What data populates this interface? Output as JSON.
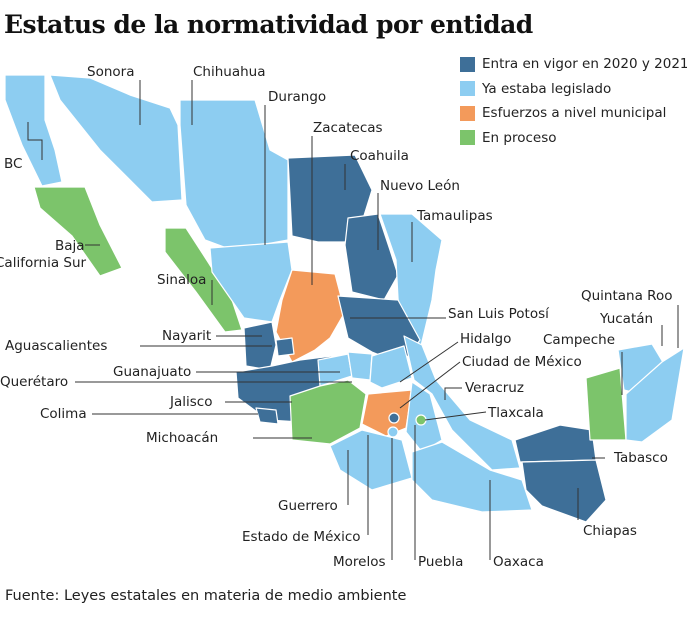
{
  "title": "Estatus de la normatividad  por entidad",
  "legend": [
    {
      "key": "vigor",
      "label": "Entra en vigor en 2020 y 2021",
      "color": "#3e6f98"
    },
    {
      "key": "legislado",
      "label": "Ya estaba legislado",
      "color": "#8dcdf1"
    },
    {
      "key": "municipal",
      "label": "Esfuerzos a nivel municipal",
      "color": "#f39a5b"
    },
    {
      "key": "proceso",
      "label": "En proceso",
      "color": "#7cc46b"
    }
  ],
  "states": {
    "bc": {
      "name": "BC",
      "status": "legislado"
    },
    "bcs": {
      "name": "Baja California Sur",
      "status": "proceso"
    },
    "sonora": {
      "name": "Sonora",
      "status": "legislado"
    },
    "chihuahua": {
      "name": "Chihuahua",
      "status": "legislado"
    },
    "sinaloa": {
      "name": "Sinaloa",
      "status": "proceso"
    },
    "durango": {
      "name": "Durango",
      "status": "legislado"
    },
    "coahuila": {
      "name": "Coahuila",
      "status": "vigor"
    },
    "nuevoleon": {
      "name": "Nuevo León",
      "status": "vigor"
    },
    "tamaulipas": {
      "name": "Tamaulipas",
      "status": "legislado"
    },
    "zacatecas": {
      "name": "Zacatecas",
      "status": "municipal"
    },
    "slp": {
      "name": "San Luis Potosí",
      "status": "vigor"
    },
    "nayarit": {
      "name": "Nayarit",
      "status": "vigor"
    },
    "aguascalientes": {
      "name": "Aguascalientes",
      "status": "vigor"
    },
    "jalisco": {
      "name": "Jalisco",
      "status": "vigor"
    },
    "colima": {
      "name": "Colima",
      "status": "vigor"
    },
    "guanajuato": {
      "name": "Guanajuato",
      "status": "legislado"
    },
    "queretaro": {
      "name": "Querétaro",
      "status": "legislado"
    },
    "hidalgo": {
      "name": "Hidalgo",
      "status": "legislado"
    },
    "michoacan": {
      "name": "Michoacán",
      "status": "proceso"
    },
    "edomex": {
      "name": "Estado de México",
      "status": "municipal"
    },
    "cdmx": {
      "name": "Ciudad de México",
      "status": "vigor"
    },
    "morelos": {
      "name": "Morelos",
      "status": "legislado"
    },
    "tlaxcala": {
      "name": "Tlaxcala",
      "status": "proceso"
    },
    "puebla": {
      "name": "Puebla",
      "status": "legislado"
    },
    "veracruz": {
      "name": "Veracruz",
      "status": "legislado"
    },
    "guerrero": {
      "name": "Guerrero",
      "status": "legislado"
    },
    "oaxaca": {
      "name": "Oaxaca",
      "status": "legislado"
    },
    "tabasco": {
      "name": "Tabasco",
      "status": "vigor"
    },
    "chiapas": {
      "name": "Chiapas",
      "status": "vigor"
    },
    "campeche": {
      "name": "Campeche",
      "status": "proceso"
    },
    "yucatan": {
      "name": "Yucatán",
      "status": "legislado"
    },
    "quintanaroo": {
      "name": "Quintana Roo",
      "status": "legislado"
    }
  },
  "source": "Fuente: Leyes estatales en materia de medio ambiente"
}
